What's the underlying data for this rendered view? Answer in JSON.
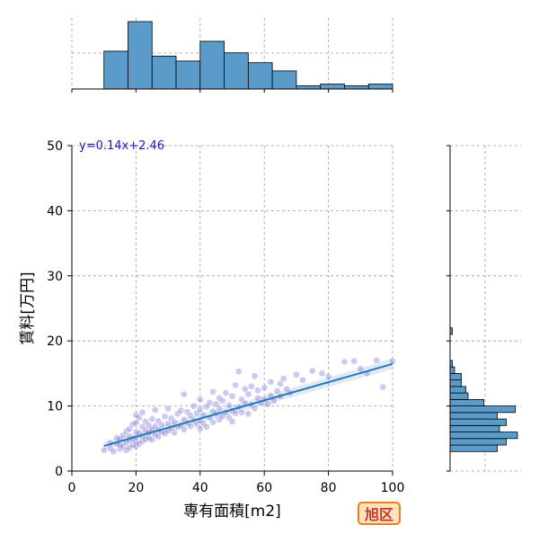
{
  "chart_data": {
    "type": "scatter",
    "title": "",
    "xlabel": "専有面積[m2]",
    "ylabel": "賃料[万円]",
    "xlim": [
      0,
      100
    ],
    "ylim": [
      0,
      50
    ],
    "xticks": [
      0,
      20,
      40,
      60,
      80,
      100
    ],
    "yticks": [
      0,
      10,
      20,
      30,
      40,
      50
    ],
    "grid": true,
    "annotation": "y=0.14x+2.46",
    "regression": {
      "slope": 0.14,
      "intercept": 2.46,
      "x_range": [
        10,
        100
      ]
    },
    "points": [
      [
        10,
        3.2
      ],
      [
        12,
        3.5
      ],
      [
        12,
        4.3
      ],
      [
        13,
        3.0
      ],
      [
        14,
        4.2
      ],
      [
        14,
        5.1
      ],
      [
        15,
        3.4
      ],
      [
        15,
        4.0
      ],
      [
        15,
        4.9
      ],
      [
        16,
        3.8
      ],
      [
        16,
        5.5
      ],
      [
        17,
        3.2
      ],
      [
        17,
        4.4
      ],
      [
        17,
        6.1
      ],
      [
        18,
        3.6
      ],
      [
        18,
        4.8
      ],
      [
        18,
        5.3
      ],
      [
        18,
        6.5
      ],
      [
        19,
        4.0
      ],
      [
        19,
        5.0
      ],
      [
        19,
        7.2
      ],
      [
        20,
        3.8
      ],
      [
        20,
        4.5
      ],
      [
        20,
        5.2
      ],
      [
        20,
        6.0
      ],
      [
        20,
        7.4
      ],
      [
        20,
        8.6
      ],
      [
        21,
        4.2
      ],
      [
        21,
        5.8
      ],
      [
        21,
        8.2
      ],
      [
        22,
        4.6
      ],
      [
        22,
        5.4
      ],
      [
        22,
        6.8
      ],
      [
        22,
        9.0
      ],
      [
        23,
        4.9
      ],
      [
        23,
        6.2
      ],
      [
        23,
        7.6
      ],
      [
        24,
        5.1
      ],
      [
        24,
        5.9
      ],
      [
        24,
        7.0
      ],
      [
        25,
        4.8
      ],
      [
        25,
        6.4
      ],
      [
        25,
        8.0
      ],
      [
        26,
        5.6
      ],
      [
        26,
        6.9
      ],
      [
        26,
        9.4
      ],
      [
        27,
        5.3
      ],
      [
        27,
        6.3
      ],
      [
        27,
        7.7
      ],
      [
        28,
        6.0
      ],
      [
        28,
        7.1
      ],
      [
        29,
        5.8
      ],
      [
        29,
        8.4
      ],
      [
        30,
        6.2
      ],
      [
        30,
        7.3
      ],
      [
        30,
        9.6
      ],
      [
        31,
        6.6
      ],
      [
        31,
        8.1
      ],
      [
        32,
        5.9
      ],
      [
        32,
        7.5
      ],
      [
        33,
        6.8
      ],
      [
        33,
        8.8
      ],
      [
        34,
        7.0
      ],
      [
        34,
        9.3
      ],
      [
        35,
        6.4
      ],
      [
        35,
        7.9
      ],
      [
        35,
        11.8
      ],
      [
        36,
        7.4
      ],
      [
        36,
        9.1
      ],
      [
        37,
        6.9
      ],
      [
        37,
        8.5
      ],
      [
        38,
        7.8
      ],
      [
        38,
        10.0
      ],
      [
        39,
        7.2
      ],
      [
        39,
        8.9
      ],
      [
        40,
        6.5
      ],
      [
        40,
        7.8
      ],
      [
        40,
        9.5
      ],
      [
        40,
        11.0
      ],
      [
        41,
        7.3
      ],
      [
        41,
        8.6
      ],
      [
        42,
        6.8
      ],
      [
        42,
        9.9
      ],
      [
        43,
        8.2
      ],
      [
        43,
        10.5
      ],
      [
        44,
        7.5
      ],
      [
        44,
        9.2
      ],
      [
        44,
        12.2
      ],
      [
        45,
        8.8
      ],
      [
        45,
        10.3
      ],
      [
        46,
        7.9
      ],
      [
        46,
        9.6
      ],
      [
        46,
        11.2
      ],
      [
        47,
        8.4
      ],
      [
        47,
        10.8
      ],
      [
        48,
        9.0
      ],
      [
        48,
        12.0
      ],
      [
        49,
        8.2
      ],
      [
        49,
        10.1
      ],
      [
        50,
        7.6
      ],
      [
        50,
        9.3
      ],
      [
        50,
        11.5
      ],
      [
        51,
        8.9
      ],
      [
        51,
        13.2
      ],
      [
        52,
        9.8
      ],
      [
        52,
        15.3
      ],
      [
        53,
        9.0
      ],
      [
        53,
        11.0
      ],
      [
        54,
        10.4
      ],
      [
        54,
        12.6
      ],
      [
        55,
        8.8
      ],
      [
        55,
        11.8
      ],
      [
        56,
        10.2
      ],
      [
        56,
        13.0
      ],
      [
        57,
        9.6
      ],
      [
        57,
        14.6
      ],
      [
        58,
        11.2
      ],
      [
        58,
        12.4
      ],
      [
        59,
        10.5
      ],
      [
        60,
        11.0
      ],
      [
        60,
        12.8
      ],
      [
        61,
        10.3
      ],
      [
        62,
        11.6
      ],
      [
        62,
        13.7
      ],
      [
        63,
        10.8
      ],
      [
        64,
        12.3
      ],
      [
        65,
        11.5
      ],
      [
        65,
        13.4
      ],
      [
        66,
        14.2
      ],
      [
        67,
        12.6
      ],
      [
        68,
        12.0
      ],
      [
        70,
        14.8
      ],
      [
        72,
        14.0
      ],
      [
        75,
        15.4
      ],
      [
        78,
        15.0
      ],
      [
        80,
        14.5
      ],
      [
        85,
        16.8
      ],
      [
        88,
        16.9
      ],
      [
        90,
        15.7
      ],
      [
        92,
        15.0
      ],
      [
        95,
        17.0
      ],
      [
        97,
        12.9
      ],
      [
        100,
        16.9
      ]
    ]
  },
  "x_hist": {
    "bin_edges": [
      10,
      17.5,
      25,
      32.5,
      40,
      47.5,
      55,
      62.5,
      70,
      77.5,
      85,
      92.5,
      100
    ],
    "heights": [
      23,
      41,
      20,
      17,
      29,
      22,
      16,
      11,
      2,
      3,
      2,
      3
    ]
  },
  "y_hist": {
    "bin_edges": [
      3,
      4,
      5,
      6,
      7,
      8,
      9,
      10,
      11,
      12,
      13,
      14,
      15,
      16,
      17,
      18,
      19,
      20,
      21,
      22,
      23
    ],
    "heights": [
      21,
      25,
      30,
      22,
      25,
      21,
      29,
      15,
      8,
      7,
      5,
      5,
      2,
      1,
      0,
      0,
      0,
      0,
      1,
      0
    ]
  },
  "colors": {
    "points": "#4b3fc4",
    "line": "#2878b8",
    "hist_fill": "#5a9bc9",
    "annotation": "#1a1ab8",
    "grid": "#9e9e9e"
  },
  "badge": "旭区"
}
